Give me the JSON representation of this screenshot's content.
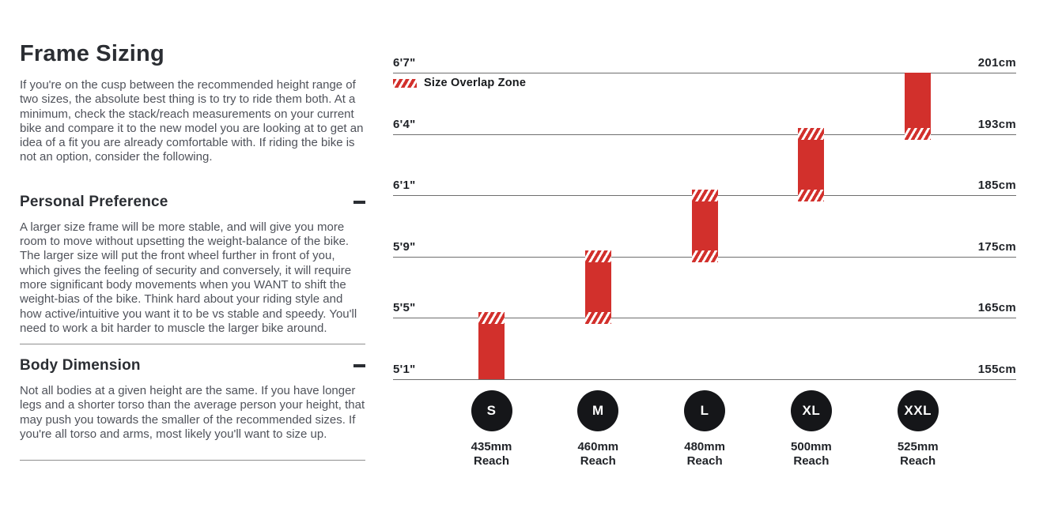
{
  "content": {
    "title": "Frame Sizing",
    "intro": "If you're on the cusp between the recommended height range of two sizes, the absolute best thing is to try to ride them both. At a minimum, check the stack/reach measurements on your current bike and compare it to the new model you are looking at to get an idea of a fit you are already comfortable with. If riding the bike is not an option, consider the following.",
    "sections": [
      {
        "heading": "Personal Preference",
        "body": "A larger size frame will be more stable, and will give you more room to move without upsetting the weight-balance of the bike. The larger size will put the front wheel further in front of you, which gives the feeling of security and conversely, it will require more significant body movements when you WANT to shift the weight-bias of the bike. Think hard about your riding style and how active/intuitive you want it to be vs stable and speedy. You'll need to work a bit harder to muscle the larger bike around.",
        "toggle_icon": "minus-icon"
      },
      {
        "heading": "Body Dimension",
        "body": "Not all bodies at a given height are the same. If you have longer legs and a shorter torso than the average person your height, that may push you towards the smaller of the recommended sizes. If you're all torso and arms, most likely you'll want to size up.",
        "toggle_icon": "minus-icon"
      }
    ]
  },
  "chart_data": {
    "type": "bar",
    "legend_label": "Size Overlap Zone",
    "reach_word": "Reach",
    "gridlines": [
      {
        "imperial": "6'7\"",
        "metric": "201cm",
        "cm": 201
      },
      {
        "imperial": "6'4\"",
        "metric": "193cm",
        "cm": 193
      },
      {
        "imperial": "6'1\"",
        "metric": "185cm",
        "cm": 185
      },
      {
        "imperial": "5'9\"",
        "metric": "175cm",
        "cm": 175
      },
      {
        "imperial": "5'5\"",
        "metric": "165cm",
        "cm": 165
      },
      {
        "imperial": "5'1\"",
        "metric": "155cm",
        "cm": 155
      }
    ],
    "sizes": [
      {
        "label": "S",
        "reach": "435mm",
        "range_cm": [
          155,
          165
        ],
        "range_imperial": [
          "5'1\"",
          "5'5\""
        ],
        "overlap_top": true,
        "overlap_bottom": false
      },
      {
        "label": "M",
        "reach": "460mm",
        "range_cm": [
          165,
          175
        ],
        "range_imperial": [
          "5'5\"",
          "5'9\""
        ],
        "overlap_top": true,
        "overlap_bottom": true
      },
      {
        "label": "L",
        "reach": "480mm",
        "range_cm": [
          175,
          185
        ],
        "range_imperial": [
          "5'9\"",
          "6'1\""
        ],
        "overlap_top": true,
        "overlap_bottom": true
      },
      {
        "label": "XL",
        "reach": "500mm",
        "range_cm": [
          185,
          193
        ],
        "range_imperial": [
          "6'1\"",
          "6'4\""
        ],
        "overlap_top": true,
        "overlap_bottom": true
      },
      {
        "label": "XXL",
        "reach": "525mm",
        "range_cm": [
          193,
          201
        ],
        "range_imperial": [
          "6'4\"",
          "6'7\""
        ],
        "overlap_top": false,
        "overlap_bottom": true
      }
    ],
    "colors": {
      "bar_red": "#d2302c",
      "circle_black": "#151619",
      "gridline_gray": "#6e6e6e"
    }
  }
}
